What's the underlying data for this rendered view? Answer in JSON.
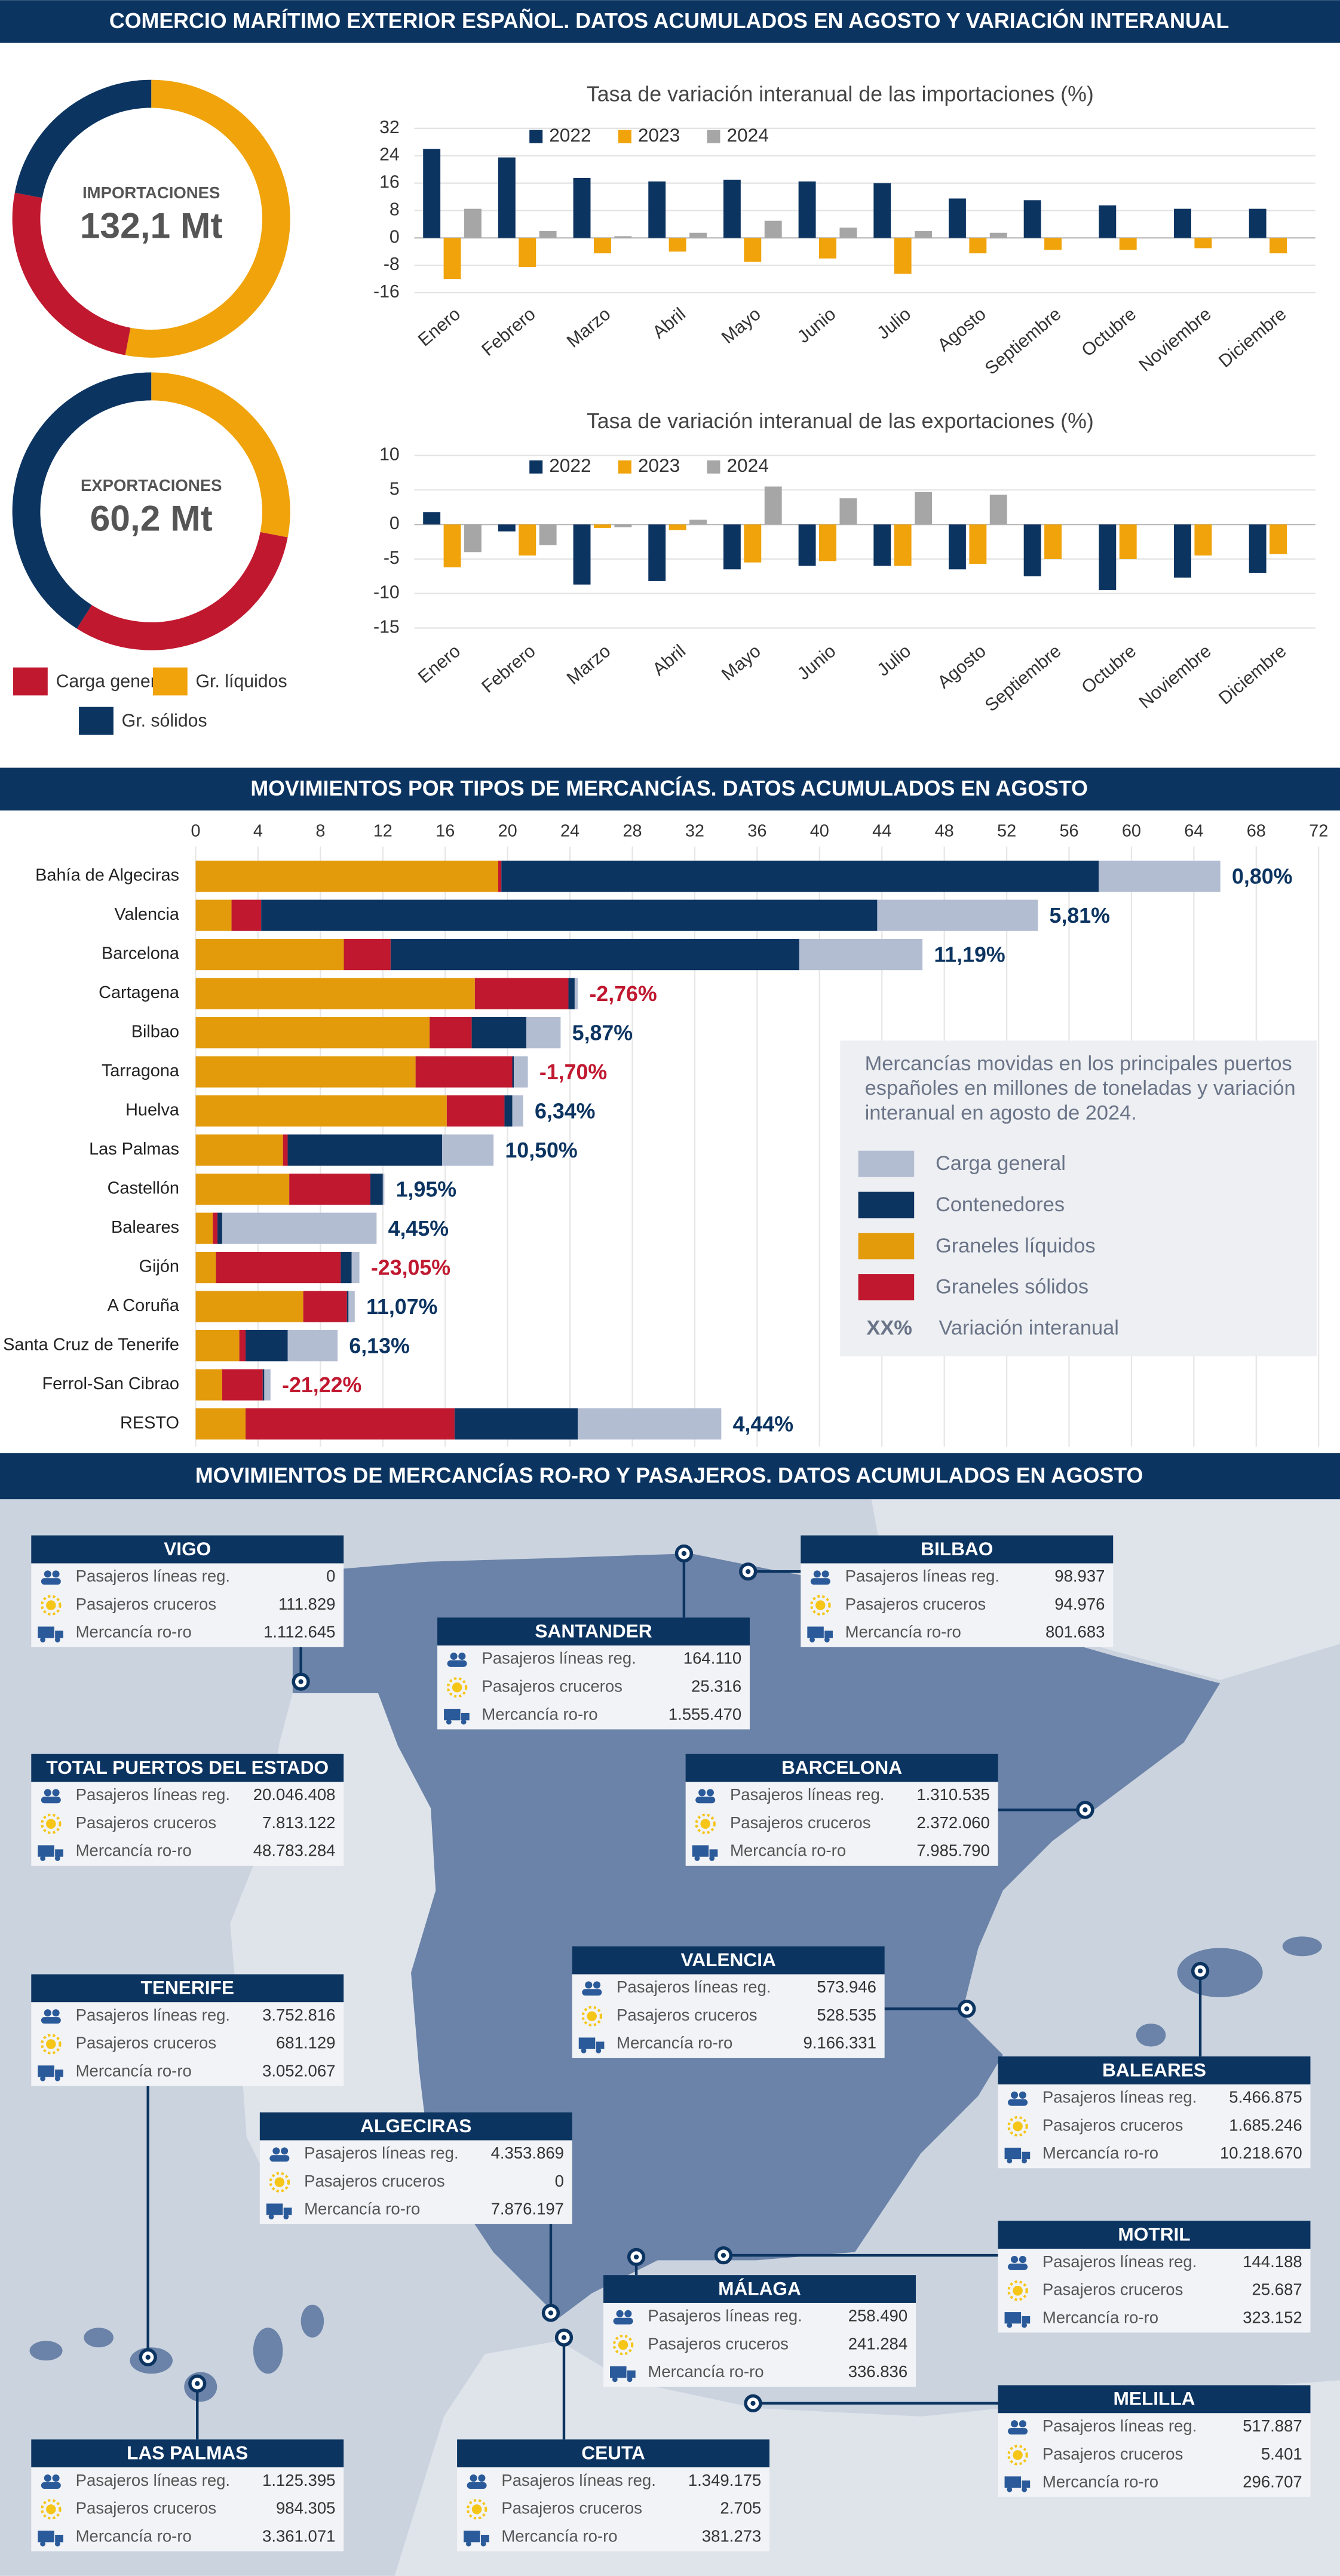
{
  "header": {
    "title1": "COMERCIO MARÍTIMO EXTERIOR ESPAÑOL. DATOS ACUMULADOS EN AGOSTO Y VARIACIÓN INTERANUAL",
    "title2": "MOVIMIENTOS POR TIPOS DE MERCANCÍAS. DATOS ACUMULADOS EN AGOSTO",
    "title3": "MOVIMIENTOS DE MERCANCÍAS RO-RO Y PASAJEROS.  DATOS ACUMULADOS EN AGOSTO"
  },
  "donut_legend": [
    {
      "name": "Carga general",
      "color": "#c0182f"
    },
    {
      "name": "Gr. líquidos",
      "color": "#f0a30a"
    },
    {
      "name": "Gr. sólidos",
      "color": "#0c3461"
    }
  ],
  "chart_data": [
    {
      "type": "donut",
      "label": "IMPORTACIONES",
      "total": "132,1 Mt",
      "values": [
        25,
        53,
        22
      ]
    },
    {
      "type": "donut",
      "label": "EXPORTACIONES",
      "total": "60,2 Mt",
      "values": [
        31,
        28,
        41
      ]
    },
    {
      "type": "bar",
      "title": "Tasa de variación interanual de las importaciones (%)",
      "categories": [
        "Enero",
        "Febrero",
        "Marzo",
        "Abril",
        "Mayo",
        "Junio",
        "Julio",
        "Agosto",
        "Septiembre",
        "Octubre",
        "Noviembre",
        "Diciembre"
      ],
      "series": [
        {
          "name": "2022",
          "color": "#0c3461",
          "values": [
            26,
            23.5,
            17.5,
            16.5,
            17,
            16.5,
            16,
            11.5,
            11,
            9.5,
            8.5,
            8.5
          ]
        },
        {
          "name": "2023",
          "color": "#f0a30a",
          "values": [
            -12,
            -8.5,
            -4.5,
            -4,
            -7,
            -6,
            -10.5,
            -4.5,
            -3.5,
            -3.5,
            -3,
            -4.5
          ]
        },
        {
          "name": "2024",
          "color": "#a6a6a6",
          "values": [
            8.5,
            2,
            0.5,
            1.5,
            5,
            3,
            2,
            1.5,
            null,
            null,
            null,
            null
          ]
        }
      ],
      "ylim": [
        -16,
        32
      ],
      "yticks": [
        32,
        24,
        16,
        8,
        0,
        -8,
        -16
      ],
      "grid": true
    },
    {
      "type": "bar",
      "title": "Tasa de variación interanual de las exportaciones (%)",
      "categories": [
        "Enero",
        "Febrero",
        "Marzo",
        "Abril",
        "Mayo",
        "Junio",
        "Julio",
        "Agosto",
        "Septiembre",
        "Octubre",
        "Noviembre",
        "Diciembre"
      ],
      "series": [
        {
          "name": "2022",
          "color": "#0c3461",
          "values": [
            1.8,
            -1,
            -8.7,
            -8.2,
            -6.5,
            -6,
            -6,
            -6.5,
            -7.5,
            -9.5,
            -7.7,
            -7
          ]
        },
        {
          "name": "2023",
          "color": "#f0a30a",
          "values": [
            -6.2,
            -4.5,
            -0.5,
            -0.8,
            -5.5,
            -5.3,
            -6,
            -5.7,
            -5,
            -5,
            -4.5,
            -4.3
          ]
        },
        {
          "name": "2024",
          "color": "#a6a6a6",
          "values": [
            -4,
            -3,
            -0.4,
            0.7,
            5.5,
            3.8,
            4.7,
            4.3,
            null,
            null,
            null,
            null
          ]
        }
      ],
      "ylim": [
        -15,
        10
      ],
      "yticks": [
        10,
        5,
        0,
        -5,
        -10,
        -15
      ],
      "grid": true
    },
    {
      "type": "stacked_hbar",
      "categories": [
        "Bahía de Algeciras",
        "Valencia",
        "Barcelona",
        "Cartagena",
        "Bilbao",
        "Tarragona",
        "Huelva",
        "Las Palmas",
        "Castellón",
        "Baleares",
        "Gijón",
        "A Coruña",
        "Santa Cruz de Tenerife",
        "Ferrol-San Cibrao",
        "RESTO"
      ],
      "series": [
        {
          "name": "Graneles líquidos",
          "color": "#e39b0c",
          "values": [
            19.4,
            2.3,
            9.5,
            17.9,
            15.0,
            14.1,
            16.1,
            5.6,
            6.0,
            1.1,
            1.3,
            6.9,
            2.8,
            1.7,
            3.2
          ]
        },
        {
          "name": "Graneles sólidos",
          "color": "#c0182f",
          "values": [
            0.2,
            1.9,
            3.0,
            6.0,
            2.7,
            6.2,
            3.7,
            0.3,
            5.2,
            0.3,
            8.0,
            2.8,
            0.4,
            2.6,
            13.4
          ]
        },
        {
          "name": "Contenedores",
          "color": "#0c3461",
          "values": [
            38.3,
            39.5,
            26.2,
            0.4,
            3.5,
            0.1,
            0.5,
            9.9,
            0.8,
            0.3,
            0.7,
            0.1,
            2.7,
            0.1,
            7.9
          ]
        },
        {
          "name": "Carga general",
          "color": "#b3bdd1",
          "values": [
            7.8,
            10.3,
            7.9,
            0.2,
            2.2,
            0.9,
            0.7,
            3.3,
            0.1,
            9.9,
            0.5,
            0.4,
            3.2,
            0.4,
            9.2
          ]
        }
      ],
      "variation": [
        0.8,
        5.81,
        11.19,
        -2.76,
        5.87,
        -1.7,
        6.34,
        10.5,
        1.95,
        4.45,
        -23.05,
        11.07,
        6.13,
        -21.22,
        4.44
      ],
      "variation_labels": [
        "0,80%",
        "5,81%",
        "11,19%",
        "-2,76%",
        "5,87%",
        "-1,70%",
        "6,34%",
        "10,50%",
        "1,95%",
        "4,45%",
        "-23,05%",
        "11,07%",
        "6,13%",
        "-21,22%",
        "4,44%"
      ],
      "xlim": [
        0,
        72
      ],
      "xticks": [
        0,
        4,
        8,
        12,
        16,
        20,
        24,
        28,
        32,
        36,
        40,
        44,
        48,
        52,
        56,
        60,
        64,
        68,
        72
      ],
      "grid": true,
      "note": "Mercancías movidas en los principales puertos españoles en millones de toneladas y variación interanual en agosto de 2024.",
      "variation_key": "XX%",
      "variation_key_label": "Variación interanual"
    }
  ],
  "ro_ro": {
    "row_labels": [
      "Pasajeros líneas reg.",
      "Pasajeros cruceros",
      "Mercancía ro-ro"
    ],
    "ports": [
      {
        "name": "VIGO",
        "values": [
          "0",
          "111.829",
          "1.112.645"
        ]
      },
      {
        "name": "SANTANDER",
        "values": [
          "164.110",
          "25.316",
          "1.555.470"
        ]
      },
      {
        "name": "BILBAO",
        "values": [
          "98.937",
          "94.976",
          "801.683"
        ]
      },
      {
        "name": "TOTAL PUERTOS DEL ESTADO",
        "values": [
          "20.046.408",
          "7.813.122",
          "48.783.284"
        ]
      },
      {
        "name": "BARCELONA",
        "values": [
          "1.310.535",
          "2.372.060",
          "7.985.790"
        ]
      },
      {
        "name": "TENERIFE",
        "values": [
          "3.752.816",
          "681.129",
          "3.052.067"
        ]
      },
      {
        "name": "VALENCIA",
        "values": [
          "573.946",
          "528.535",
          "9.166.331"
        ]
      },
      {
        "name": "BALEARES",
        "values": [
          "5.466.875",
          "1.685.246",
          "10.218.670"
        ]
      },
      {
        "name": "ALGECIRAS",
        "values": [
          "4.353.869",
          "0",
          "7.876.197"
        ]
      },
      {
        "name": "MOTRIL",
        "values": [
          "144.188",
          "25.687",
          "323.152"
        ]
      },
      {
        "name": "MÁLAGA",
        "values": [
          "258.490",
          "241.284",
          "336.836"
        ]
      },
      {
        "name": "MELILLA",
        "values": [
          "517.887",
          "5.401",
          "296.707"
        ]
      },
      {
        "name": "LAS PALMAS",
        "values": [
          "1.125.395",
          "984.305",
          "3.361.071"
        ]
      },
      {
        "name": "CEUTA",
        "values": [
          "1.349.175",
          "2.705",
          "381.273"
        ]
      }
    ]
  }
}
